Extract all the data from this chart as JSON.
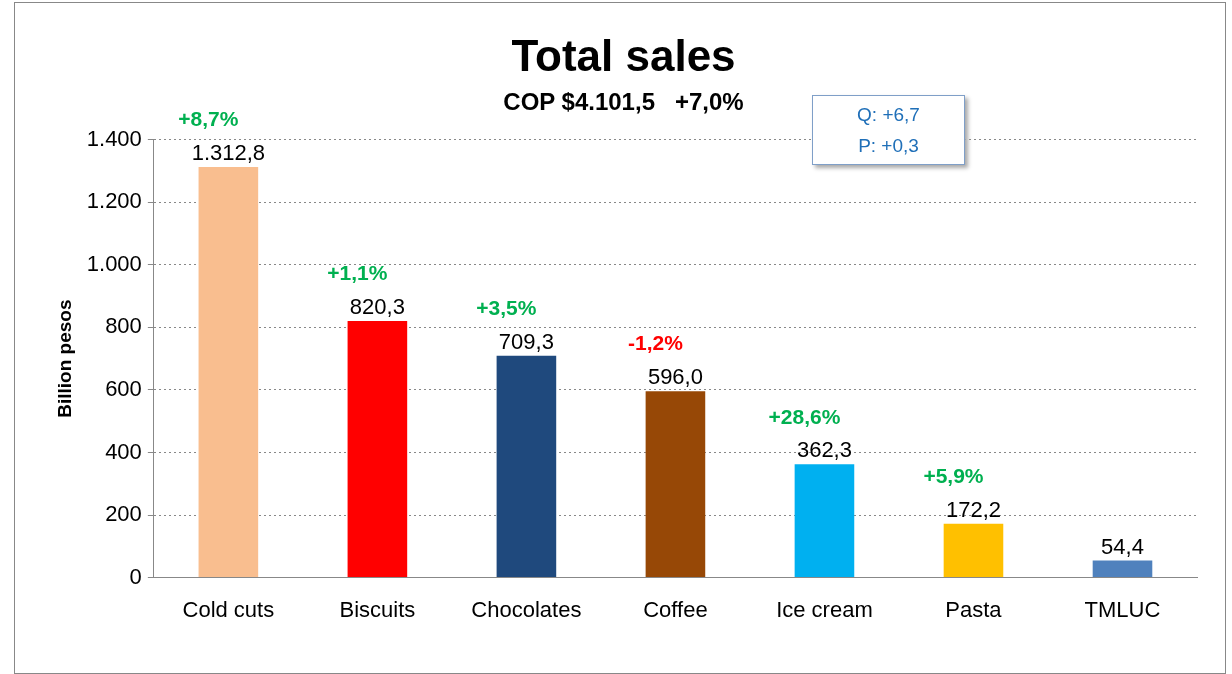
{
  "chart_data": {
    "type": "bar",
    "title": "Total sales",
    "subtitle": "COP $4.101,5   +7,0%",
    "ylabel": "Billion pesos",
    "categories": [
      "Cold cuts",
      "Biscuits",
      "Chocolates",
      "Coffee",
      "Ice cream",
      "Pasta",
      "TMLUC"
    ],
    "values": [
      1312.8,
      820.3,
      709.3,
      596.0,
      362.3,
      172.2,
      54.4
    ],
    "colors": [
      "#f9be8f",
      "#ff0000",
      "#1f497d",
      "#974806",
      "#00b0f0",
      "#ffc000",
      "#4f81bd"
    ],
    "value_labels": [
      "1.312,8",
      "820,3",
      "709,3",
      "596,0",
      "362,3",
      "172,2",
      "54,4"
    ],
    "ylim": [
      0,
      1400
    ],
    "yticks": [
      {
        "value": 0,
        "label": "0"
      },
      {
        "value": 200,
        "label": "200"
      },
      {
        "value": 400,
        "label": "400"
      },
      {
        "value": 600,
        "label": "600"
      },
      {
        "value": 800,
        "label": "800"
      },
      {
        "value": 1000,
        "label": "1.000"
      },
      {
        "value": 1200,
        "label": "1.200"
      },
      {
        "value": 1400,
        "label": "1.400"
      }
    ],
    "grid": "y",
    "legend": false,
    "annotations": [
      {
        "text": "+8,7%",
        "x": "Cold cuts",
        "y": 1312.8
      },
      {
        "text": "+1,1%",
        "x": "Biscuits",
        "y": 820.3
      },
      {
        "text": "+3,5%",
        "x": "Chocolates",
        "y": 709.3
      },
      {
        "text": "-1,2%",
        "x": "Coffee",
        "y": 596.0
      },
      {
        "text": "+28,6%",
        "x": "Ice cream",
        "y": 362.3
      },
      {
        "text": "+5,9%",
        "x": "Pasta",
        "y": 172.2
      },
      "Q: +6,7\nP: +0,3"
    ]
  }
}
